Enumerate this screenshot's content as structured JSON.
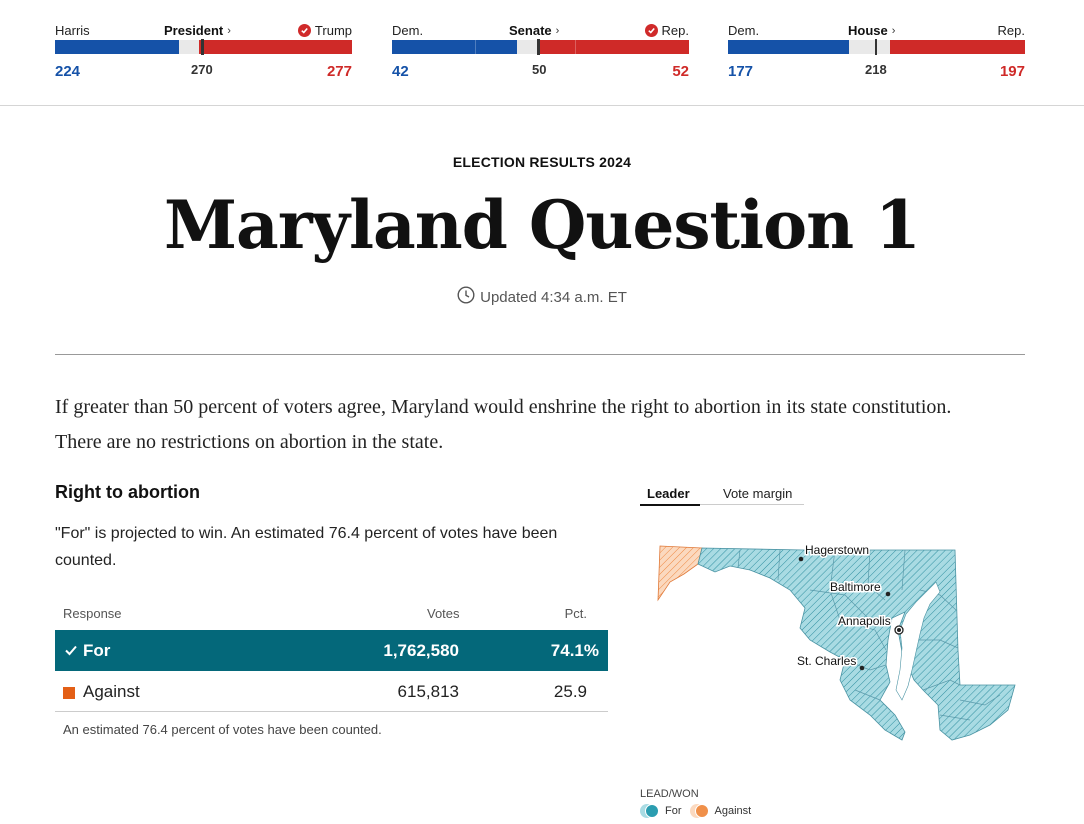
{
  "results_bar": {
    "president": {
      "left_label": "Harris",
      "center_label": "President",
      "right_label": "Trump",
      "left_value": "224",
      "center_value": "270",
      "right_value": "277",
      "dem_share": 0.416,
      "rep_share": 0.515
    },
    "senate": {
      "left_label": "Dem.",
      "center_label": "Senate",
      "right_label": "Rep.",
      "left_value": "42",
      "center_value": "50",
      "right_value": "52",
      "dem_share": 0.42,
      "rep_share": 0.52
    },
    "house": {
      "left_label": "Dem.",
      "center_label": "House",
      "right_label": "Rep.",
      "left_value": "177",
      "center_value": "218",
      "right_value": "197",
      "dem_share": 0.407,
      "rep_share": 0.453
    }
  },
  "header": {
    "kicker": "ELECTION RESULTS 2024",
    "title": "Maryland Question 1",
    "updated": "Updated 4:34 a.m. ET"
  },
  "description": "If greater than 50 percent of voters agree, Maryland would enshrine the right to abortion in its state constitution. There are no restrictions on abortion in the state.",
  "measure": {
    "heading": "Right to abortion",
    "status": "\"For\" is projected to win. An estimated 76.4 percent of votes have been counted.",
    "columns": {
      "response": "Response",
      "votes": "Votes",
      "pct": "Pct."
    },
    "rows": [
      {
        "response": "For",
        "votes": "1,762,580",
        "pct": "74.1%"
      },
      {
        "response": "Against",
        "votes": "615,813",
        "pct": "25.9"
      }
    ],
    "footnote": "An estimated 76.4 percent of votes have been counted."
  },
  "map": {
    "tabs": [
      "Leader",
      "Vote margin"
    ],
    "cities": [
      "Hagerstown",
      "Baltimore",
      "Annapolis",
      "St. Charles"
    ],
    "legend_title": "LEAD/WON",
    "legend": [
      {
        "label": "For",
        "color": "#2b9db0"
      },
      {
        "label": "Against",
        "color": "#f0904a"
      }
    ]
  },
  "colors": {
    "dem": "#1552a8",
    "rep": "#cf2a28",
    "winner_row": "#04687a",
    "against": "#e35f16"
  }
}
